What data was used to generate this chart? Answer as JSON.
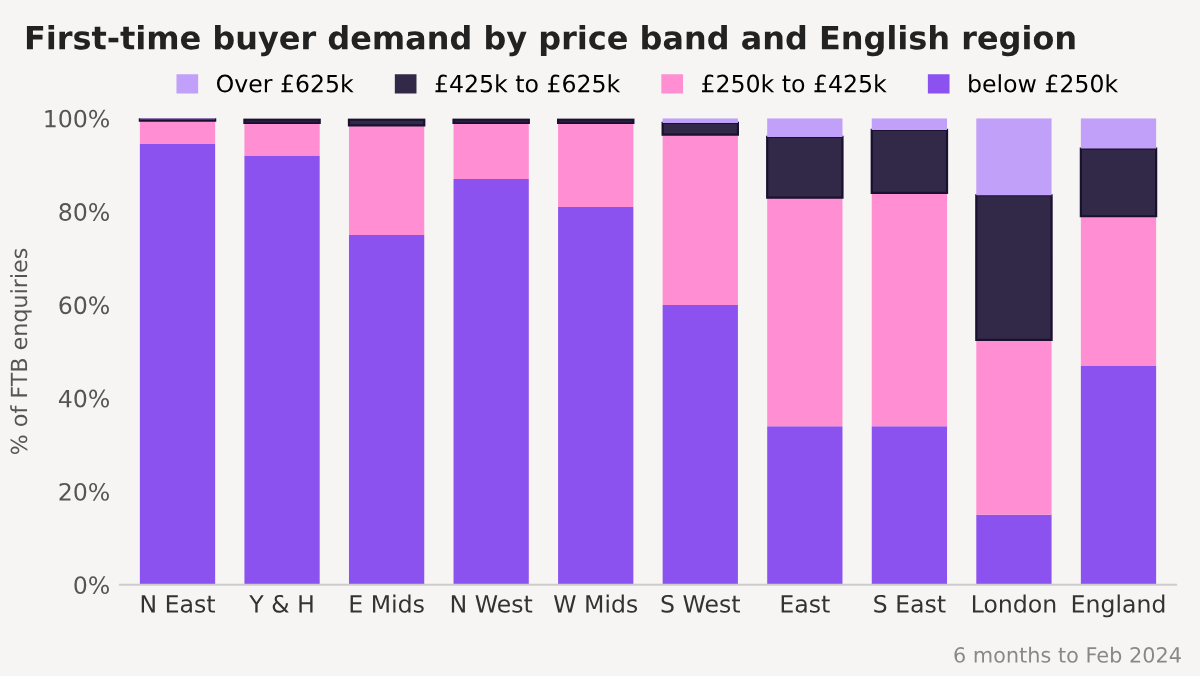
{
  "chart_data": {
    "type": "bar",
    "stacked": true,
    "title": "First-time buyer demand by price band and English region",
    "ylabel": "% of FTB enquiries",
    "categories": [
      "N East",
      "Y & H",
      "E Mids",
      "N West",
      "W Mids",
      "S West",
      "East",
      "S East",
      "London",
      "England"
    ],
    "series": [
      {
        "name": "below £250k",
        "color": "#8c52f0",
        "values": [
          94.5,
          92,
          75,
          87,
          81,
          60,
          34,
          34,
          15,
          47
        ]
      },
      {
        "name": "£250k to £425k",
        "color": "#ff8ed3",
        "values": [
          5,
          7,
          23.5,
          12,
          18,
          36.5,
          49,
          50,
          37.5,
          32
        ]
      },
      {
        "name": "£425k to £625k",
        "color": "#322848",
        "values": [
          0.3,
          0.7,
          1.2,
          0.7,
          0.7,
          2.5,
          13,
          13.5,
          31,
          14.5
        ]
      },
      {
        "name": "Over £625k",
        "color": "#c0a0f8",
        "values": [
          0.2,
          null,
          null,
          null,
          null,
          1,
          4,
          2.5,
          16.5,
          6.5
        ]
      }
    ],
    "ylim": [
      0,
      100
    ],
    "yticks": [
      {
        "value": 0,
        "label": "0%"
      },
      {
        "value": 20,
        "label": "20%"
      },
      {
        "value": 40,
        "label": "40%"
      },
      {
        "value": 60,
        "label": "60%"
      },
      {
        "value": 80,
        "label": "80%"
      },
      {
        "value": 100,
        "label": "100%"
      }
    ],
    "grid": false,
    "legend": "top",
    "annotations": [
      "6 months to Feb 2024"
    ]
  }
}
